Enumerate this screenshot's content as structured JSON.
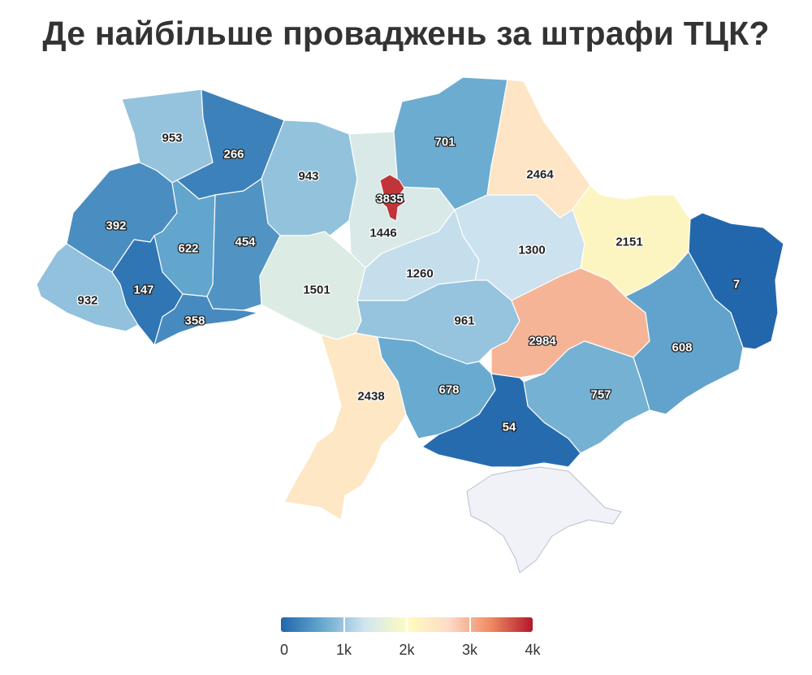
{
  "title": "Де найбільше проваджень за штрафи ТЦК?",
  "chart_data": {
    "type": "choropleth",
    "title": "Де найбільше проваджень за штрафи ТЦК?",
    "value_range": [
      0,
      4000
    ],
    "colorscale": [
      "#2166ac",
      "#67a9cf",
      "#d1e5f0",
      "#fdfdbf",
      "#fddbc7",
      "#ef8a62",
      "#b2182b"
    ],
    "legend_ticks": [
      "0",
      "1k",
      "2k",
      "3k",
      "4k"
    ],
    "regions": [
      {
        "id": "volyn",
        "value": 953
      },
      {
        "id": "rivne",
        "value": 266
      },
      {
        "id": "zhytomyr",
        "value": 943
      },
      {
        "id": "kyiv-oblast",
        "value": 1446
      },
      {
        "id": "kyiv-city",
        "value": 3835
      },
      {
        "id": "chernihiv",
        "value": 701
      },
      {
        "id": "sumy",
        "value": 2464
      },
      {
        "id": "lviv",
        "value": 392
      },
      {
        "id": "ternopil",
        "value": 622
      },
      {
        "id": "khmelnytskyi",
        "value": 454
      },
      {
        "id": "zakarpattia",
        "value": 932
      },
      {
        "id": "ivano-frankivsk",
        "value": 147
      },
      {
        "id": "chernivtsi",
        "value": 358
      },
      {
        "id": "vinnytsia",
        "value": 1501
      },
      {
        "id": "cherkasy",
        "value": 1260
      },
      {
        "id": "poltava",
        "value": 1300
      },
      {
        "id": "kharkiv",
        "value": 2151
      },
      {
        "id": "luhansk",
        "value": 7
      },
      {
        "id": "kirovohrad",
        "value": 961
      },
      {
        "id": "dnipropetrovsk",
        "value": 2984
      },
      {
        "id": "donetsk",
        "value": 608
      },
      {
        "id": "odesa",
        "value": 2438
      },
      {
        "id": "mykolaiv",
        "value": 678
      },
      {
        "id": "zaporizhzhia",
        "value": 757
      },
      {
        "id": "kherson",
        "value": 54
      },
      {
        "id": "crimea",
        "value": null
      }
    ]
  }
}
